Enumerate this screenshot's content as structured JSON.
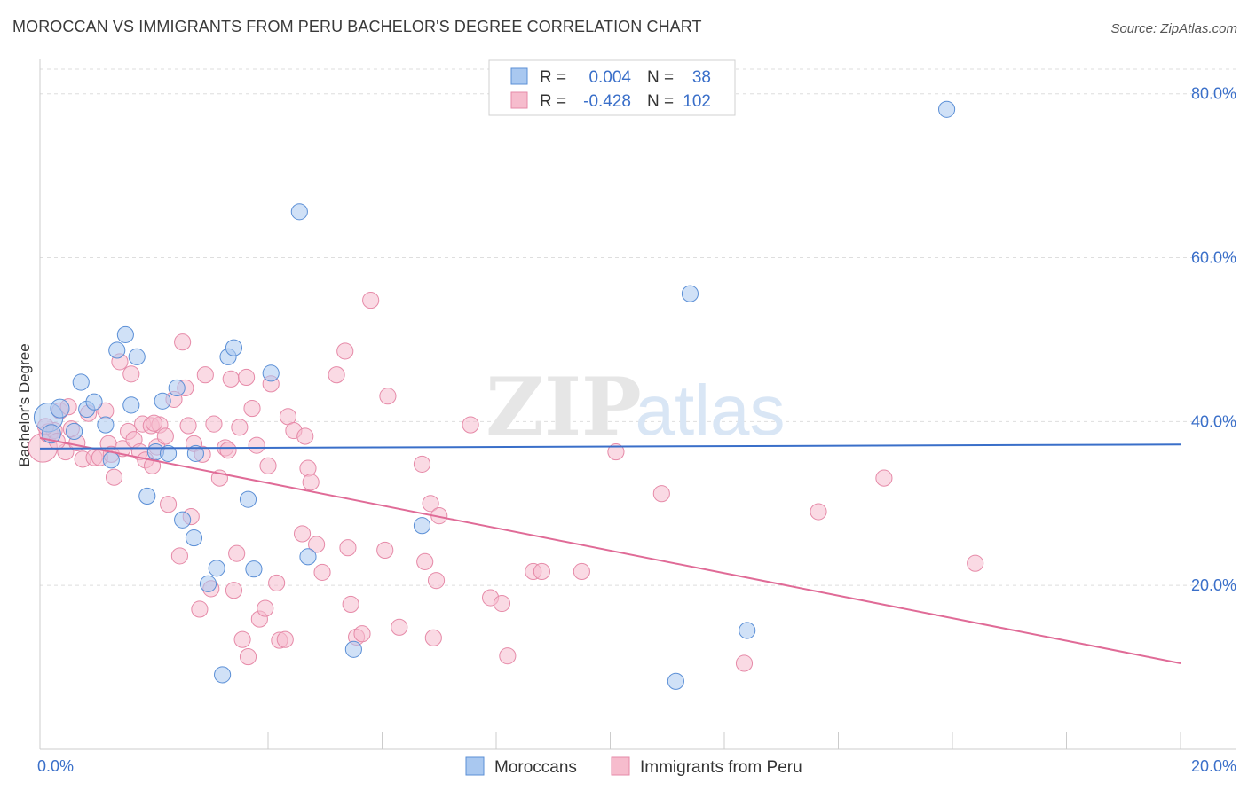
{
  "source": "Source: ZipAtlas.com",
  "watermark": {
    "zip": "ZIP",
    "atlas": "atlas"
  },
  "chart_data": {
    "type": "scatter",
    "title": "MOROCCAN VS IMMIGRANTS FROM PERU BACHELOR'S DEGREE CORRELATION CHART",
    "xlabel": "",
    "ylabel": "Bachelor's Degree",
    "xlim": [
      0,
      20
    ],
    "ylim": [
      0,
      83
    ],
    "x_tick_labels": [
      "0.0%",
      "20.0%"
    ],
    "y_ticks": [
      20,
      40,
      60,
      80
    ],
    "y_tick_labels": [
      "20.0%",
      "40.0%",
      "60.0%",
      "80.0%"
    ],
    "grid": true,
    "legend": {
      "position": "top-center",
      "entries": [
        {
          "r_label": "R =",
          "r_value": "0.004",
          "n_label": "N =",
          "n_value": "38"
        },
        {
          "r_label": "R =",
          "r_value": "-0.428",
          "n_label": "N =",
          "n_value": "102"
        }
      ]
    },
    "bottom_legend": [
      "Moroccans",
      "Immigrants from Peru"
    ],
    "colors": {
      "moroccans_fill": "#a9c8f0",
      "moroccans_stroke": "#5b8fd6",
      "moroccans_line": "#3a6fc9",
      "peru_fill": "#f6bccd",
      "peru_stroke": "#e68aa8",
      "peru_line": "#e06b97",
      "tick_label": "#3a6fc9"
    },
    "series": [
      {
        "name": "Moroccans",
        "trend": [
          [
            0,
            36.7
          ],
          [
            20,
            37.2
          ]
        ],
        "points": [
          [
            0.15,
            40.5,
            22
          ],
          [
            0.2,
            38.5,
            14
          ],
          [
            0.35,
            41.6,
            14
          ],
          [
            0.6,
            38.8,
            12
          ],
          [
            0.72,
            44.8,
            12
          ],
          [
            0.82,
            41.5,
            12
          ],
          [
            0.95,
            42.4,
            12
          ],
          [
            1.15,
            39.6,
            12
          ],
          [
            1.25,
            35.3,
            12
          ],
          [
            1.35,
            48.7,
            12
          ],
          [
            1.5,
            50.6,
            12
          ],
          [
            1.6,
            42.0,
            12
          ],
          [
            1.7,
            47.9,
            12
          ],
          [
            1.88,
            30.9,
            12
          ],
          [
            2.03,
            36.3,
            12
          ],
          [
            2.15,
            42.5,
            12
          ],
          [
            2.25,
            36.1,
            12
          ],
          [
            2.4,
            44.1,
            12
          ],
          [
            2.5,
            28.0,
            12
          ],
          [
            2.7,
            25.8,
            12
          ],
          [
            2.73,
            36.1,
            12
          ],
          [
            2.95,
            20.2,
            12
          ],
          [
            3.1,
            22.1,
            12
          ],
          [
            3.2,
            9.1,
            12
          ],
          [
            3.3,
            47.9,
            12
          ],
          [
            3.4,
            49.0,
            12
          ],
          [
            3.65,
            30.5,
            12
          ],
          [
            3.75,
            22.0,
            12
          ],
          [
            4.05,
            45.9,
            12
          ],
          [
            4.55,
            65.6,
            12
          ],
          [
            4.7,
            23.5,
            12
          ],
          [
            5.5,
            12.2,
            12
          ],
          [
            6.7,
            27.3,
            12
          ],
          [
            11.15,
            8.3,
            12
          ],
          [
            11.4,
            55.6,
            12
          ],
          [
            12.4,
            14.5,
            12
          ],
          [
            15.9,
            78.1,
            12
          ]
        ]
      },
      {
        "name": "Immigrants from Peru",
        "trend": [
          [
            0,
            38.0
          ],
          [
            20,
            10.5
          ]
        ],
        "points": [
          [
            0.05,
            36.8,
            22
          ],
          [
            0.15,
            38.6,
            14
          ],
          [
            0.25,
            38.9,
            12
          ],
          [
            0.35,
            41.3,
            12
          ],
          [
            0.45,
            36.3,
            12
          ],
          [
            0.55,
            39.1,
            12
          ],
          [
            0.65,
            37.4,
            12
          ],
          [
            0.75,
            35.4,
            12
          ],
          [
            0.85,
            41.0,
            12
          ],
          [
            0.95,
            35.6,
            12
          ],
          [
            1.05,
            35.6,
            12
          ],
          [
            1.15,
            41.3,
            12
          ],
          [
            1.2,
            37.3,
            12
          ],
          [
            1.25,
            36.0,
            12
          ],
          [
            1.3,
            33.2,
            12
          ],
          [
            1.4,
            47.3,
            12
          ],
          [
            1.45,
            36.7,
            12
          ],
          [
            1.55,
            38.8,
            12
          ],
          [
            1.6,
            45.8,
            12
          ],
          [
            1.65,
            37.8,
            12
          ],
          [
            1.75,
            36.3,
            12
          ],
          [
            1.8,
            39.7,
            12
          ],
          [
            1.85,
            35.3,
            12
          ],
          [
            1.95,
            39.5,
            12
          ],
          [
            1.97,
            34.6,
            12
          ],
          [
            2.05,
            36.9,
            12
          ],
          [
            2.1,
            39.6,
            12
          ],
          [
            2.2,
            38.2,
            12
          ],
          [
            2.25,
            29.9,
            12
          ],
          [
            2.35,
            42.7,
            12
          ],
          [
            2.45,
            23.6,
            12
          ],
          [
            2.5,
            49.7,
            12
          ],
          [
            2.55,
            44.1,
            12
          ],
          [
            2.6,
            39.5,
            12
          ],
          [
            2.65,
            28.4,
            12
          ],
          [
            2.7,
            37.3,
            12
          ],
          [
            2.8,
            17.1,
            12
          ],
          [
            2.85,
            36.0,
            12
          ],
          [
            2.9,
            45.7,
            12
          ],
          [
            3.0,
            19.6,
            12
          ],
          [
            3.05,
            39.7,
            12
          ],
          [
            3.15,
            33.1,
            12
          ],
          [
            3.25,
            36.8,
            12
          ],
          [
            3.35,
            45.2,
            12
          ],
          [
            3.4,
            19.4,
            12
          ],
          [
            3.45,
            23.9,
            12
          ],
          [
            3.5,
            39.3,
            12
          ],
          [
            3.55,
            13.4,
            12
          ],
          [
            3.62,
            45.4,
            12
          ],
          [
            3.65,
            11.3,
            12
          ],
          [
            3.72,
            41.6,
            12
          ],
          [
            3.8,
            37.1,
            12
          ],
          [
            3.85,
            15.9,
            12
          ],
          [
            3.95,
            17.2,
            12
          ],
          [
            4.0,
            34.6,
            12
          ],
          [
            4.05,
            44.6,
            12
          ],
          [
            4.15,
            20.3,
            12
          ],
          [
            4.2,
            13.3,
            12
          ],
          [
            4.3,
            13.4,
            12
          ],
          [
            4.35,
            40.6,
            12
          ],
          [
            4.45,
            38.9,
            12
          ],
          [
            4.6,
            26.3,
            12
          ],
          [
            4.65,
            38.2,
            12
          ],
          [
            4.7,
            34.3,
            12
          ],
          [
            4.75,
            32.6,
            12
          ],
          [
            4.85,
            25.0,
            12
          ],
          [
            4.95,
            21.6,
            12
          ],
          [
            5.2,
            45.7,
            12
          ],
          [
            5.35,
            48.6,
            12
          ],
          [
            5.4,
            24.6,
            12
          ],
          [
            5.45,
            17.7,
            12
          ],
          [
            5.55,
            13.7,
            12
          ],
          [
            5.65,
            14.1,
            12
          ],
          [
            5.8,
            54.8,
            12
          ],
          [
            6.05,
            24.3,
            12
          ],
          [
            6.1,
            43.1,
            12
          ],
          [
            6.3,
            14.9,
            12
          ],
          [
            6.7,
            34.8,
            12
          ],
          [
            6.75,
            22.9,
            12
          ],
          [
            6.85,
            30.0,
            12
          ],
          [
            6.9,
            13.6,
            12
          ],
          [
            6.95,
            20.6,
            12
          ],
          [
            7.0,
            28.5,
            12
          ],
          [
            7.55,
            39.6,
            12
          ],
          [
            7.9,
            18.5,
            12
          ],
          [
            8.1,
            17.8,
            12
          ],
          [
            8.2,
            11.4,
            12
          ],
          [
            8.65,
            21.7,
            12
          ],
          [
            8.8,
            21.7,
            12
          ],
          [
            9.5,
            21.7,
            12
          ],
          [
            10.1,
            36.3,
            12
          ],
          [
            10.9,
            31.2,
            12
          ],
          [
            12.35,
            10.5,
            12
          ],
          [
            13.65,
            29.0,
            12
          ],
          [
            14.8,
            33.1,
            12
          ],
          [
            16.4,
            22.7,
            12
          ],
          [
            0.1,
            39.4,
            12
          ],
          [
            0.3,
            37.6,
            12
          ],
          [
            0.5,
            41.8,
            12
          ],
          [
            2.0,
            39.8,
            12
          ],
          [
            3.3,
            36.5,
            12
          ]
        ]
      }
    ]
  }
}
